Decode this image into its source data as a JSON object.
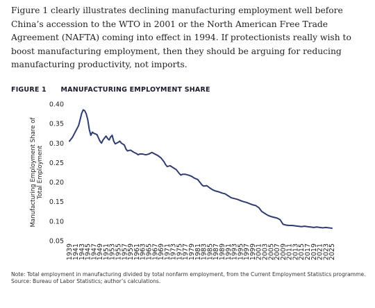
{
  "paragraph": "Figure 1 clearly illustrates declining manufacturing employment well before China’s accession to the WTO in 2001 or the North American Free Trade Agreement (NAFTA) coming into effect in 1994. If protectionists really wish to boost manufacturing employment, then they should be arguing for reducing manufacturing productivity, not imports.",
  "figure": {
    "label": "FIGURE 1",
    "title": "MANUFACTURING EMPLOYMENT SHARE"
  },
  "chart_data": {
    "type": "line",
    "ylabel_line1": "Manufacturing Employment Share of",
    "ylabel_line2": "Total Employment",
    "xlabel": "",
    "ylim": [
      0.05,
      0.4
    ],
    "yticks": [
      "0.40",
      "0.35",
      "0.30",
      "0.25",
      "0.20",
      "0.15",
      "0.10",
      "0.05"
    ],
    "xlim": [
      1939,
      2025
    ],
    "xticks": [
      "1939",
      "1941",
      "1943",
      "1945",
      "1947",
      "1949",
      "1951",
      "1953",
      "1955",
      "1957",
      "1959",
      "1961",
      "1963",
      "1965",
      "1967",
      "1969",
      "1971",
      "1973",
      "1975",
      "1977",
      "1979",
      "1981",
      "1983",
      "1985",
      "1987",
      "1989",
      "1991",
      "1993",
      "1995",
      "1997",
      "1999",
      "2001",
      "2003",
      "2005",
      "2007",
      "2009",
      "2011",
      "2013",
      "2015",
      "2017",
      "2019",
      "2021",
      "2023",
      "2025"
    ],
    "color": "#2b3a7e",
    "grid": false,
    "legend": "none",
    "series": [
      {
        "x": [
          1939,
          1940,
          1941,
          1942,
          1942.5,
          1943,
          1943.5,
          1944,
          1944.5,
          1945,
          1945.5,
          1946,
          1946.5,
          1947,
          1948,
          1949,
          1949.5,
          1950,
          1951,
          1951.5,
          1952,
          1952.5,
          1953,
          1953.5,
          1954,
          1955,
          1955.5,
          1956,
          1957,
          1957.5,
          1958,
          1959,
          1960,
          1961,
          1961.5,
          1962,
          1963,
          1964,
          1965,
          1966,
          1967,
          1968,
          1969,
          1970,
          1970.5,
          1971,
          1972,
          1973,
          1974,
          1975,
          1975.5,
          1976,
          1977,
          1978,
          1979,
          1980,
          1981,
          1982,
          1982.5,
          1983,
          1984,
          1985,
          1986,
          1987,
          1988,
          1989,
          1990,
          1991,
          1992,
          1993,
          1994,
          1995,
          1996,
          1997,
          1998,
          1999,
          2000,
          2001,
          2002,
          2003,
          2004,
          2005,
          2006,
          2007,
          2008,
          2009,
          2010,
          2011,
          2012,
          2013,
          2014,
          2015,
          2016,
          2017,
          2018,
          2019,
          2020,
          2021,
          2022,
          2023,
          2024,
          2025
        ],
        "y": [
          0.305,
          0.315,
          0.33,
          0.345,
          0.36,
          0.376,
          0.385,
          0.383,
          0.375,
          0.36,
          0.335,
          0.32,
          0.328,
          0.325,
          0.322,
          0.305,
          0.3,
          0.308,
          0.318,
          0.312,
          0.308,
          0.316,
          0.32,
          0.305,
          0.298,
          0.302,
          0.305,
          0.3,
          0.295,
          0.285,
          0.28,
          0.282,
          0.277,
          0.273,
          0.27,
          0.272,
          0.272,
          0.27,
          0.272,
          0.276,
          0.272,
          0.268,
          0.262,
          0.252,
          0.245,
          0.24,
          0.242,
          0.237,
          0.232,
          0.222,
          0.218,
          0.22,
          0.22,
          0.218,
          0.215,
          0.21,
          0.207,
          0.197,
          0.192,
          0.19,
          0.191,
          0.185,
          0.18,
          0.177,
          0.175,
          0.172,
          0.17,
          0.165,
          0.16,
          0.158,
          0.156,
          0.153,
          0.15,
          0.148,
          0.145,
          0.142,
          0.14,
          0.135,
          0.125,
          0.12,
          0.115,
          0.112,
          0.11,
          0.108,
          0.104,
          0.092,
          0.09,
          0.089,
          0.089,
          0.088,
          0.087,
          0.086,
          0.087,
          0.086,
          0.085,
          0.084,
          0.085,
          0.084,
          0.083,
          0.084,
          0.083,
          0.082
        ]
      }
    ]
  },
  "notes": {
    "note": "Note: Total employment in manufacturing divided by total nonfarm employment, from the Current Employment Statistics programme.",
    "source": "Source: Bureau of Labor Statistics; author’s calculations."
  }
}
